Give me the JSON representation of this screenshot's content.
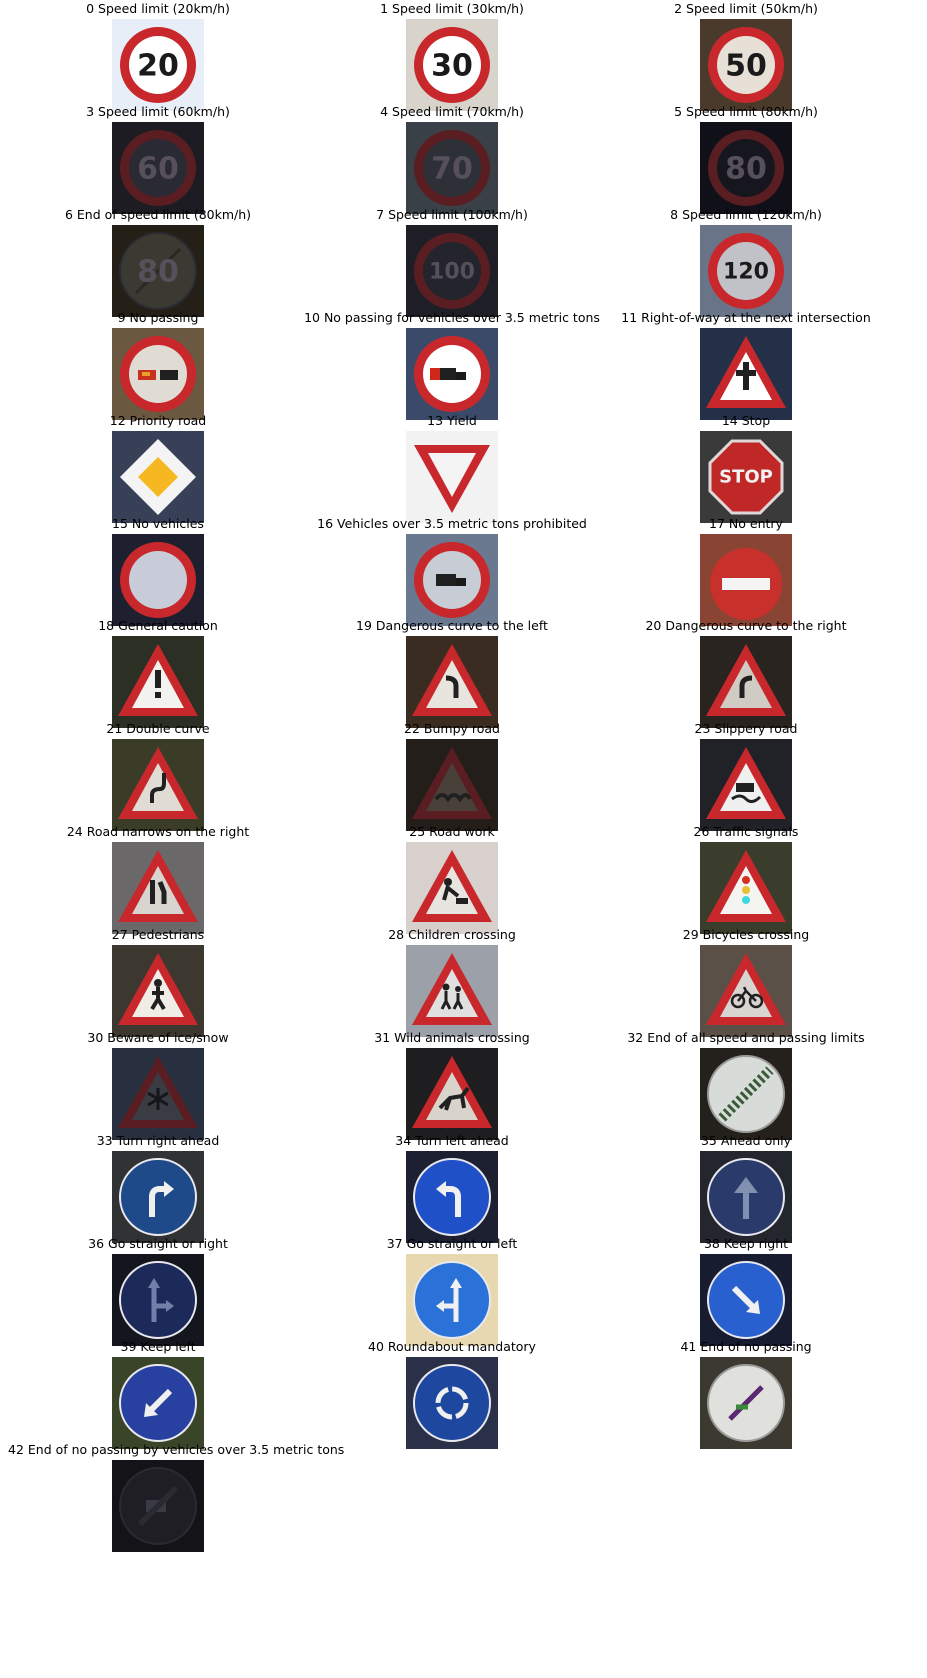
{
  "signs": [
    {
      "label": "0 Speed limit (20km/h)",
      "bg": "#e8eef8",
      "shape": "circle-red",
      "fill": "#ffffff",
      "symbol": "20",
      "dark": false
    },
    {
      "label": "1 Speed limit (30km/h)",
      "bg": "#d8d4cc",
      "shape": "circle-red",
      "fill": "#ffffff",
      "symbol": "30",
      "dark": false
    },
    {
      "label": "2 Speed limit (50km/h)",
      "bg": "#4a3a2c",
      "shape": "circle-red",
      "fill": "#e6e0d6",
      "symbol": "50",
      "dark": false
    },
    {
      "label": "3 Speed limit (60km/h)",
      "bg": "#1c1c22",
      "shape": "circle-red",
      "fill": "#2a2a34",
      "symbol": "60",
      "dark": true
    },
    {
      "label": "4 Speed limit (70km/h)",
      "bg": "#3a4048",
      "shape": "circle-red",
      "fill": "#2e3038",
      "symbol": "70",
      "dark": true
    },
    {
      "label": "5 Speed limit (80km/h)",
      "bg": "#101018",
      "shape": "circle-red",
      "fill": "#16161e",
      "symbol": "80",
      "dark": true
    },
    {
      "label": "6 End of speed limit (80km/h)",
      "bg": "#242018",
      "shape": "circle-grey",
      "fill": "#3a3a32",
      "symbol": "80",
      "dark": true
    },
    {
      "label": "7 Speed limit (100km/h)",
      "bg": "#1e1e26",
      "shape": "circle-red",
      "fill": "#24242c",
      "symbol": "100",
      "dark": true
    },
    {
      "label": "8 Speed limit (120km/h)",
      "bg": "#6a7488",
      "shape": "circle-red",
      "fill": "#c0c2c8",
      "symbol": "120",
      "dark": false
    },
    {
      "label": "9 No passing",
      "bg": "#6a5840",
      "shape": "circle-red",
      "fill": "#e0dcd4",
      "symbol": "cars",
      "dark": false
    },
    {
      "label": "10 No passing for vehicles over 3.5 metric tons",
      "bg": "#3a4a68",
      "shape": "circle-red",
      "fill": "#ffffff",
      "symbol": "truck",
      "dark": false
    },
    {
      "label": "11 Right-of-way at the next intersection",
      "bg": "#243048",
      "shape": "triangle",
      "fill": "#ffffff",
      "symbol": "cross",
      "dark": false
    },
    {
      "label": "12 Priority road",
      "bg": "#384058",
      "shape": "diamond",
      "fill": "#f5b820",
      "symbol": "",
      "dark": false
    },
    {
      "label": "13 Yield",
      "bg": "#f2f2f2",
      "shape": "yield",
      "fill": "#ffffff",
      "symbol": "",
      "dark": false
    },
    {
      "label": "14 Stop",
      "bg": "#3a3a3a",
      "shape": "octagon",
      "fill": "#c02828",
      "symbol": "STOP",
      "dark": false
    },
    {
      "label": "15 No vehicles",
      "bg": "#1e2030",
      "shape": "circle-red",
      "fill": "#c8ccd8",
      "symbol": "",
      "dark": false
    },
    {
      "label": "16 Vehicles over 3.5 metric tons prohibited",
      "bg": "#6a7890",
      "shape": "circle-red",
      "fill": "#c8ccd4",
      "symbol": "truck",
      "dark": false
    },
    {
      "label": "17 No entry",
      "bg": "#8a4434",
      "shape": "noentry",
      "fill": "#c8302c",
      "symbol": "",
      "dark": false
    },
    {
      "label": "18 General caution",
      "bg": "#2c3024",
      "shape": "triangle",
      "fill": "#f2f2ee",
      "symbol": "!",
      "dark": false
    },
    {
      "label": "19 Dangerous curve to the left",
      "bg": "#3a2c20",
      "shape": "triangle",
      "fill": "#e8e4de",
      "symbol": "curve-left",
      "dark": false
    },
    {
      "label": "20 Dangerous curve to the right",
      "bg": "#2a2420",
      "shape": "triangle",
      "fill": "#d0ccc4",
      "symbol": "curve-right",
      "dark": false
    },
    {
      "label": "21 Double curve",
      "bg": "#3a3c28",
      "shape": "triangle",
      "fill": "#e0dcd4",
      "symbol": "double-curve",
      "dark": false
    },
    {
      "label": "22 Bumpy road",
      "bg": "#241e1a",
      "shape": "triangle",
      "fill": "#4a403a",
      "symbol": "bumps",
      "dark": true
    },
    {
      "label": "23 Slippery road",
      "bg": "#202228",
      "shape": "triangle",
      "fill": "#f0f0f0",
      "symbol": "slip",
      "dark": false
    },
    {
      "label": "24 Road narrows on the right",
      "bg": "#6a6868",
      "shape": "triangle",
      "fill": "#d8d4d0",
      "symbol": "narrows",
      "dark": false
    },
    {
      "label": "25 Road work",
      "bg": "#d8d0cc",
      "shape": "triangle",
      "fill": "#e8e4e0",
      "symbol": "worker",
      "dark": false
    },
    {
      "label": "26 Traffic signals",
      "bg": "#3a3c2c",
      "shape": "triangle",
      "fill": "#f4f4f0",
      "symbol": "lights",
      "dark": false
    },
    {
      "label": "27 Pedestrians",
      "bg": "#3c3830",
      "shape": "triangle",
      "fill": "#f0ece6",
      "symbol": "person",
      "dark": false
    },
    {
      "label": "28 Children crossing",
      "bg": "#9ca0a8",
      "shape": "triangle",
      "fill": "#e0e0e0",
      "symbol": "children",
      "dark": false
    },
    {
      "label": "29 Bicycles crossing",
      "bg": "#5a5048",
      "shape": "triangle",
      "fill": "#d8d4d0",
      "symbol": "bike",
      "dark": false
    },
    {
      "label": "30 Beware of ice/snow",
      "bg": "#283040",
      "shape": "triangle",
      "fill": "#3a3c44",
      "symbol": "snow",
      "dark": true
    },
    {
      "label": "31 Wild animals crossing",
      "bg": "#1e1e20",
      "shape": "triangle",
      "fill": "#d8d4cc",
      "symbol": "deer",
      "dark": false
    },
    {
      "label": "32 End of all speed and passing limits",
      "bg": "#24201c",
      "shape": "circle-grey",
      "fill": "#d8dcd8",
      "symbol": "",
      "dark": false
    },
    {
      "label": "33 Turn right ahead",
      "bg": "#303234",
      "shape": "circle-blue",
      "fill": "#1e4a8a",
      "symbol": "turn-right",
      "dark": false
    },
    {
      "label": "34 Turn left ahead",
      "bg": "#1c2030",
      "shape": "circle-blue",
      "fill": "#2050c8",
      "symbol": "turn-left",
      "dark": false
    },
    {
      "label": "35 Ahead only",
      "bg": "#24262e",
      "shape": "circle-blue",
      "fill": "#2a3a6a",
      "symbol": "up",
      "dark": false
    },
    {
      "label": "36 Go straight or right",
      "bg": "#14161e",
      "shape": "circle-blue",
      "fill": "#1c2a5a",
      "symbol": "straight-right",
      "dark": false
    },
    {
      "label": "37 Go straight or left",
      "bg": "#e8d8b0",
      "shape": "circle-blue",
      "fill": "#2a72d8",
      "symbol": "straight-left",
      "dark": false
    },
    {
      "label": "38 Keep right",
      "bg": "#181c30",
      "shape": "circle-blue",
      "fill": "#2860d0",
      "symbol": "keep-right",
      "dark": false
    },
    {
      "label": "39 Keep left",
      "bg": "#3a4428",
      "shape": "circle-blue",
      "fill": "#2840a0",
      "symbol": "keep-left",
      "dark": false
    },
    {
      "label": "40 Roundabout mandatory",
      "bg": "#2a3048",
      "shape": "circle-blue",
      "fill": "#1e48a0",
      "symbol": "roundabout",
      "dark": false
    },
    {
      "label": "41 End of no passing",
      "bg": "#3c3a30",
      "shape": "circle-grey",
      "fill": "#e0e0dc",
      "symbol": "end-passing",
      "dark": false
    },
    {
      "label": "42 End of no passing by vehicles over 3.5 metric tons",
      "bg": "#141418",
      "shape": "circle-grey",
      "fill": "#1e1e24",
      "symbol": "end-truck",
      "dark": true
    }
  ]
}
